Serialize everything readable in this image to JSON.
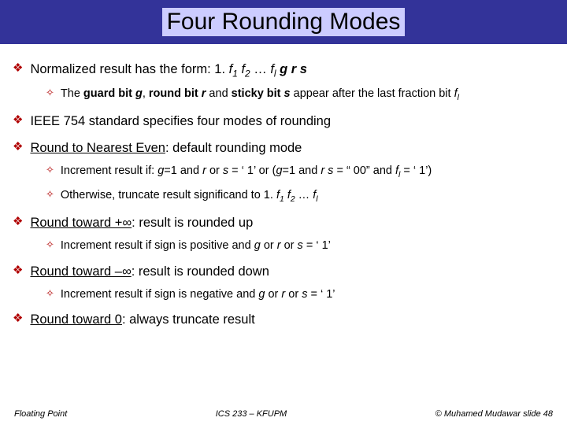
{
  "title": "Four Rounding Modes",
  "colors": {
    "titlebar_bg": "#333399",
    "title_bg": "#ccccff",
    "bullet": "#b00000",
    "text": "#000000",
    "page_bg": "#ffffff"
  },
  "fonts": {
    "title_family": "Comic Sans MS",
    "body_family": "Arial",
    "title_size_pt": 30,
    "lvl1_size_pt": 16.5,
    "lvl2_size_pt": 14.5,
    "footer_size_pt": 11
  },
  "bullets": {
    "lvl1_glyph": "❖",
    "lvl2_glyph": "✧"
  },
  "items": [
    {
      "level": 1,
      "html": "Normalized result has the form: 1. <span class=\"i\">f</span><span class=\"sub\">1</span> <span class=\"i\">f</span><span class=\"sub\">2</span> … <span class=\"i\">f</span><span class=\"sub\">l</span> <span class=\"ib\">g r s</span>"
    },
    {
      "level": 2,
      "html": "The <b>guard bit <span class=\"i\">g</span></b>, <b>round bit <span class=\"i\">r</span></b> and <b>sticky bit <span class=\"i\">s</span></b> appear after the last fraction bit <span class=\"i\">f</span><span class=\"sub\">l</span>"
    },
    {
      "level": 1,
      "html": "IEEE 754 standard specifies four modes of rounding"
    },
    {
      "level": 1,
      "html": "<span class=\"u\">Round to Nearest Even</span>: default rounding mode"
    },
    {
      "level": 2,
      "html": "Increment result if: <span class=\"i\">g</span>=1 and <span class=\"i\">r</span> or <span class=\"i\">s</span> = ‘ 1’ or (<span class=\"i\">g</span>=1 and <span class=\"i\">r s</span> = “ 00” and <span class=\"i\">f</span><span class=\"sub\">l</span> = ‘ 1’)"
    },
    {
      "level": 2,
      "html": "Otherwise, truncate result significand to 1. <span class=\"i\">f</span><span class=\"sub\">1</span> <span class=\"i\">f</span><span class=\"sub\">2</span> … <span class=\"i\">f</span><span class=\"sub\">l</span>"
    },
    {
      "level": 1,
      "html": "<span class=\"u\">Round toward +∞</span>: result is rounded up"
    },
    {
      "level": 2,
      "html": "Increment result if sign is positive and <span class=\"i\">g</span> or <span class=\"i\">r</span> or <span class=\"i\">s</span> = ‘ 1’"
    },
    {
      "level": 1,
      "html": "<span class=\"u\">Round toward –∞</span>: result is rounded down"
    },
    {
      "level": 2,
      "html": "Increment result if sign is negative and <span class=\"i\">g</span> or <span class=\"i\">r</span> or <span class=\"i\">s</span> = ‘ 1’"
    },
    {
      "level": 1,
      "html": "<span class=\"u\">Round toward 0</span>: always truncate result"
    }
  ],
  "footer": {
    "left": "Floating Point",
    "center": "ICS 233 – KFUPM",
    "right": "© Muhamed Mudawar  slide 48"
  }
}
